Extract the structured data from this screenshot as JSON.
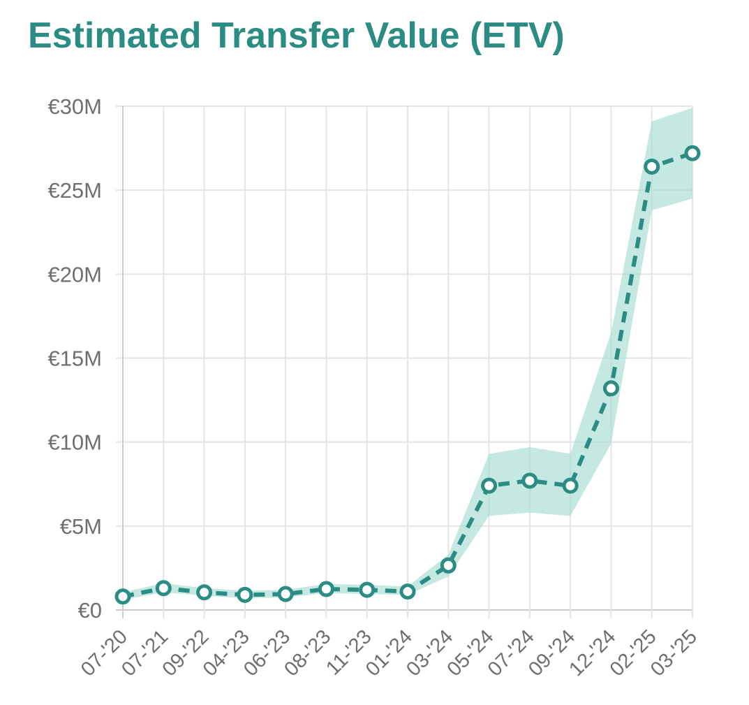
{
  "chart_data": {
    "type": "line",
    "title": "Estimated Transfer Value (ETV)",
    "xlabel": "",
    "ylabel": "",
    "ylim": [
      0,
      30
    ],
    "y_ticks": [
      {
        "value": 0,
        "label": "€0"
      },
      {
        "value": 5,
        "label": "€5M"
      },
      {
        "value": 10,
        "label": "€10M"
      },
      {
        "value": 15,
        "label": "€15M"
      },
      {
        "value": 20,
        "label": "€20M"
      },
      {
        "value": 25,
        "label": "€25M"
      },
      {
        "value": 30,
        "label": "€30M"
      }
    ],
    "categories": [
      "07-'20",
      "07-'21",
      "09-'22",
      "04-'23",
      "06-'23",
      "08-'23",
      "11-'23",
      "01-'24",
      "03-'24",
      "05-'24",
      "07-'24",
      "09-'24",
      "12-'24",
      "02-'25",
      "03-'25"
    ],
    "series": [
      {
        "values": [
          0.8,
          1.3,
          1.05,
          0.9,
          0.95,
          1.25,
          1.2,
          1.1,
          2.65,
          7.4,
          7.7,
          7.4,
          13.2,
          26.4,
          27.2
        ],
        "band_low": [
          0.6,
          1.05,
          0.85,
          0.7,
          0.75,
          1.0,
          0.95,
          0.9,
          2.0,
          5.6,
          5.8,
          5.6,
          9.9,
          23.8,
          24.5
        ],
        "band_high": [
          1.05,
          1.6,
          1.3,
          1.15,
          1.2,
          1.55,
          1.5,
          1.4,
          3.3,
          9.3,
          9.7,
          9.3,
          16.5,
          29.1,
          29.9
        ]
      }
    ],
    "grid": true,
    "legend": "none",
    "colors": {
      "line": "#2a8c83",
      "band": "#a8dcd3",
      "grid": "#e4e4e4",
      "axis": "#cccccc",
      "title": "#2a8c83"
    }
  }
}
